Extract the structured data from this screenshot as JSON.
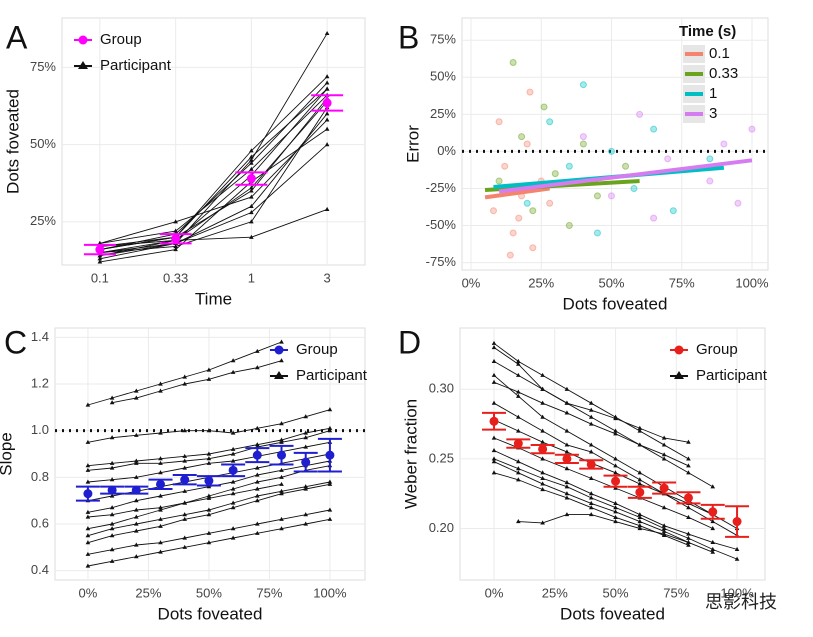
{
  "chart_data": [
    {
      "type": "line",
      "panel_label": "A",
      "xlabel": "Time",
      "ylabel": "Dots foveated",
      "categories": [
        "0.1",
        "0.33",
        "1",
        "3"
      ],
      "ylim": [
        11,
        91
      ],
      "yticks": [
        {
          "value": 25,
          "label": "25%"
        },
        {
          "value": 50,
          "label": "50%"
        },
        {
          "value": 75,
          "label": "75%"
        }
      ],
      "grid": true,
      "legend": "top-left",
      "series": [
        {
          "name": "Group",
          "color": "#ff00ff",
          "values": [
            16,
            19.5,
            39,
            63.5
          ],
          "errors": [
            1.5,
            1.5,
            2,
            2.5
          ]
        },
        {
          "name": "Participant",
          "color": "#111111",
          "lines": [
            [
              15,
              18,
              45,
              86
            ],
            [
              17,
              20,
              48,
              72
            ],
            [
              14,
              19,
              40,
              68
            ],
            [
              16,
              20,
              35,
              65
            ],
            [
              13,
              18,
              30,
              60
            ],
            [
              18,
              22,
              42,
              66
            ],
            [
              15,
              17,
              25,
              62
            ],
            [
              16,
              21,
              44,
              70
            ],
            [
              12,
              16,
              38,
              55
            ],
            [
              17,
              19,
              20,
              29
            ],
            [
              14,
              18,
              28,
              50
            ],
            [
              16,
              20,
              46,
              68
            ],
            [
              15,
              19,
              36,
              64
            ],
            [
              18,
              25,
              33,
              58
            ]
          ]
        }
      ]
    },
    {
      "type": "scatter",
      "panel_label": "B",
      "xlabel": "Dots foveated",
      "ylabel": "Error",
      "xlim": [
        -3.2,
        105.7
      ],
      "ylim": [
        -80,
        90
      ],
      "xticks": [
        {
          "value": 0,
          "label": "0%"
        },
        {
          "value": 25,
          "label": "25%"
        },
        {
          "value": 50,
          "label": "50%"
        },
        {
          "value": 75,
          "label": "75%"
        },
        {
          "value": 100,
          "label": "100%"
        }
      ],
      "yticks": [
        {
          "value": -75,
          "label": "-75%"
        },
        {
          "value": -50,
          "label": "-50%"
        },
        {
          "value": -25,
          "label": "-25%"
        },
        {
          "value": 0,
          "label": "0%"
        },
        {
          "value": 25,
          "label": "25%"
        },
        {
          "value": 50,
          "label": "50%"
        },
        {
          "value": 75,
          "label": "75%"
        }
      ],
      "hline": 0,
      "grid": true,
      "legend": "top-right",
      "legend_title": "Time (s)",
      "series": [
        {
          "name": "0.1",
          "color": "#f4846e",
          "x": [
            8,
            12,
            15,
            18,
            20,
            22,
            25,
            10,
            17,
            28,
            14,
            21
          ],
          "values": [
            -40,
            -10,
            -55,
            -30,
            5,
            -65,
            -20,
            20,
            -45,
            -35,
            -70,
            40
          ],
          "fit": {
            "x": [
              5,
              28
            ],
            "values": [
              -31,
              -25
            ]
          }
        },
        {
          "name": "0.33",
          "color": "#6aa31c",
          "x": [
            10,
            18,
            22,
            26,
            30,
            35,
            40,
            45,
            15,
            55
          ],
          "values": [
            -20,
            10,
            -40,
            30,
            -15,
            -50,
            5,
            -30,
            60,
            -10
          ],
          "fit": {
            "x": [
              5,
              60
            ],
            "values": [
              -26,
              -20
            ]
          }
        },
        {
          "name": "1",
          "color": "#00bfc4",
          "x": [
            20,
            28,
            35,
            40,
            45,
            50,
            58,
            65,
            72,
            85
          ],
          "values": [
            -35,
            20,
            -10,
            45,
            -55,
            0,
            -25,
            15,
            -40,
            -5
          ],
          "fit": {
            "x": [
              8,
              90
            ],
            "values": [
              -24,
              -11
            ]
          }
        },
        {
          "name": "3",
          "color": "#d57cf0",
          "x": [
            40,
            50,
            60,
            65,
            70,
            78,
            85,
            90,
            95,
            100
          ],
          "values": [
            10,
            -30,
            25,
            -45,
            -5,
            40,
            -20,
            5,
            -35,
            15
          ],
          "fit": {
            "x": [
              10,
              100
            ],
            "values": [
              -27,
              -6
            ]
          }
        }
      ]
    },
    {
      "type": "line",
      "panel_label": "C",
      "xlabel": "Dots foveated",
      "ylabel": "Slope",
      "x": [
        0,
        10,
        20,
        30,
        40,
        50,
        60,
        70,
        80,
        90,
        100
      ],
      "xlim": [
        -13.6,
        114.5
      ],
      "ylim": [
        0.36,
        1.44
      ],
      "xticks": [
        {
          "value": 0,
          "label": "0%"
        },
        {
          "value": 25,
          "label": "25%"
        },
        {
          "value": 50,
          "label": "50%"
        },
        {
          "value": 75,
          "label": "75%"
        },
        {
          "value": 100,
          "label": "100%"
        }
      ],
      "yticks": [
        0.4,
        0.6,
        0.8,
        {
          "value": 1,
          "label": "1.0"
        },
        1.2,
        1.4
      ],
      "hline": 1,
      "grid": true,
      "legend": "top-right",
      "series": [
        {
          "name": "Group",
          "color": "#1f1fd0",
          "values": [
            0.73,
            0.745,
            0.745,
            0.77,
            0.79,
            0.785,
            0.83,
            0.895,
            0.895,
            0.865,
            0.895
          ],
          "errors": [
            0.03,
            0.015,
            0.015,
            0.02,
            0.02,
            0.02,
            0.025,
            0.03,
            0.04,
            0.04,
            0.07
          ]
        },
        {
          "name": "Participant",
          "color": "#111111",
          "lines": [
            [
              1.11,
              1.14,
              1.17,
              1.2,
              1.23,
              1.26,
              1.3,
              1.34,
              1.38,
              null,
              null
            ],
            [
              null,
              1.12,
              1.14,
              1.17,
              1.2,
              1.22,
              1.25,
              1.27,
              1.3,
              null,
              null
            ],
            [
              0.95,
              0.97,
              0.98,
              0.99,
              1.0,
              1.0,
              0.99,
              1.01,
              1.03,
              1.06,
              1.09
            ],
            [
              0.85,
              0.86,
              0.87,
              0.88,
              0.89,
              0.9,
              0.92,
              0.94,
              0.96,
              0.99,
              1.01
            ],
            [
              0.83,
              0.84,
              0.86,
              0.86,
              0.87,
              0.88,
              0.9,
              0.93,
              0.95,
              0.97,
              1.0
            ],
            [
              0.78,
              0.79,
              0.8,
              0.82,
              0.84,
              0.86,
              0.87,
              0.89,
              0.91,
              0.93,
              0.95
            ],
            [
              0.7,
              0.72,
              0.74,
              0.76,
              0.78,
              0.8,
              0.82,
              0.84,
              0.86,
              0.88,
              0.9
            ],
            [
              0.65,
              0.67,
              0.7,
              0.72,
              0.74,
              0.76,
              0.78,
              0.81,
              0.83,
              0.85,
              0.87
            ],
            [
              0.58,
              0.6,
              0.63,
              0.66,
              0.69,
              0.72,
              0.75,
              0.78,
              0.8,
              0.83,
              0.85
            ],
            [
              0.55,
              0.58,
              0.6,
              0.62,
              0.64,
              0.66,
              0.69,
              0.72,
              0.74,
              0.76,
              0.78
            ],
            [
              0.52,
              0.55,
              0.57,
              0.59,
              0.62,
              0.64,
              0.67,
              0.7,
              0.73,
              0.75,
              0.77
            ],
            [
              0.47,
              0.49,
              0.51,
              0.52,
              0.54,
              0.56,
              0.58,
              0.6,
              0.62,
              0.64,
              0.66
            ],
            [
              0.42,
              0.44,
              0.46,
              0.48,
              0.5,
              0.52,
              0.54,
              0.56,
              0.58,
              0.6,
              0.62
            ],
            [
              0.63,
              0.64,
              0.66,
              0.67,
              0.69,
              0.71,
              0.73,
              0.75,
              0.77,
              null,
              null
            ]
          ]
        }
      ]
    },
    {
      "type": "line",
      "panel_label": "D",
      "xlabel": "Dots foveated",
      "ylabel": "Weber fraction",
      "x": [
        0,
        10,
        20,
        30,
        40,
        50,
        60,
        70,
        80,
        90,
        100
      ],
      "xlim": [
        -14,
        111.5
      ],
      "ylim": [
        0.163,
        0.344
      ],
      "xticks": [
        {
          "value": 0,
          "label": "0%"
        },
        {
          "value": 25,
          "label": "25%"
        },
        {
          "value": 50,
          "label": "50%"
        },
        {
          "value": 75,
          "label": "75%"
        },
        {
          "value": 100,
          "label": "100%"
        }
      ],
      "yticks": [
        {
          "value": 0.2,
          "label": "0.20"
        },
        0.25,
        {
          "value": 0.3,
          "label": "0.30"
        }
      ],
      "grid": true,
      "legend": "top-right",
      "series": [
        {
          "name": "Group",
          "color": "#e8201c",
          "values": [
            0.277,
            0.261,
            0.257,
            0.25,
            0.246,
            0.234,
            0.226,
            0.229,
            0.222,
            0.212,
            0.205
          ],
          "errors": [
            0.006,
            0.003,
            0.003,
            0.003,
            0.003,
            0.004,
            0.004,
            0.004,
            0.004,
            0.005,
            0.011
          ]
        },
        {
          "name": "Participant",
          "color": "#111111",
          "lines": [
            [
              0.333,
              0.32,
              0.31,
              0.3,
              0.29,
              0.28,
              0.27,
              0.26,
              0.25,
              null,
              null
            ],
            [
              0.33,
              0.318,
              0.3,
              0.29,
              0.285,
              0.279,
              0.272,
              0.265,
              0.262,
              null,
              null
            ],
            [
              0.32,
              0.31,
              0.3,
              0.29,
              0.28,
              0.27,
              0.26,
              0.25,
              0.24,
              0.23,
              null
            ],
            [
              0.31,
              0.295,
              0.28,
              0.27,
              0.26,
              0.25,
              0.24,
              0.23,
              0.22,
              0.21,
              0.2
            ],
            [
              0.29,
              0.28,
              0.27,
              0.26,
              0.255,
              0.245,
              0.235,
              0.225,
              0.215,
              0.205,
              0.195
            ],
            [
              0.278,
              0.27,
              0.262,
              0.255,
              0.247,
              0.24,
              0.232,
              0.225,
              0.218,
              0.21,
              null
            ],
            [
              0.265,
              0.258,
              0.25,
              0.243,
              0.236,
              0.229,
              0.222,
              0.215,
              0.208,
              0.2,
              null
            ],
            [
              0.25,
              0.243,
              0.236,
              0.23,
              0.222,
              0.215,
              0.208,
              0.2,
              0.193,
              0.185,
              0.178
            ],
            [
              0.248,
              0.24,
              0.232,
              0.225,
              0.218,
              0.212,
              0.205,
              0.198,
              0.19,
              0.183,
              null
            ],
            [
              0.24,
              0.235,
              0.228,
              0.222,
              0.215,
              0.208,
              0.202,
              0.195,
              0.188,
              null,
              null
            ],
            [
              null,
              0.205,
              0.204,
              0.21,
              0.21,
              0.205,
              0.2,
              0.196,
              0.19,
              null,
              null
            ],
            [
              0.256,
              0.248,
              0.24,
              0.233,
              0.225,
              0.218,
              0.21,
              0.202,
              0.196,
              0.19,
              0.185
            ],
            [
              0.305,
              0.298,
              0.29,
              0.283,
              0.275,
              0.268,
              0.26,
              0.253,
              0.245,
              null,
              null
            ]
          ]
        }
      ]
    }
  ],
  "watermark": "思影科技"
}
